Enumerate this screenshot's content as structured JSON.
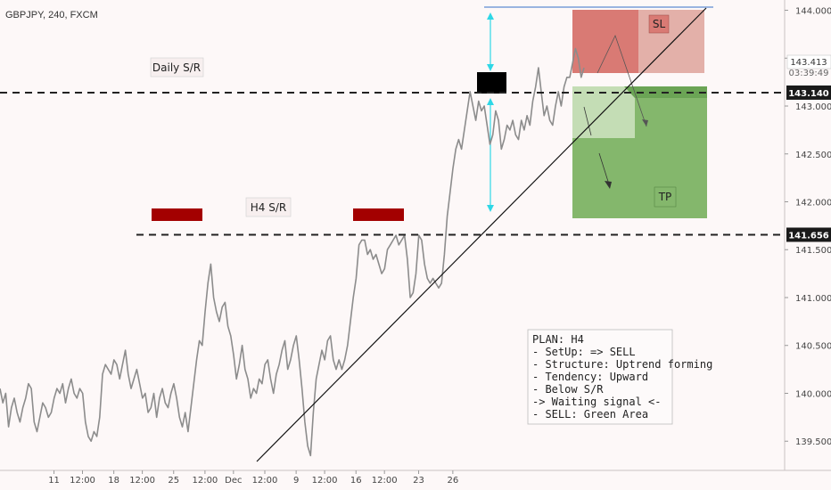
{
  "header": {
    "symbol": "GBPJPY, 240, FXCM"
  },
  "countdown": "03:39:49",
  "chart_data": {
    "type": "line",
    "symbol": "GBPJPY",
    "timeframe": "240",
    "broker": "FXCM",
    "ylim": [
      139.13,
      144.07
    ],
    "y_ticks": [
      "144.000",
      "143.500",
      "143.000",
      "142.500",
      "142.000",
      "141.500",
      "141.000",
      "140.500",
      "140.000",
      "139.500"
    ],
    "y_tick_values": [
      144.0,
      143.5,
      143.0,
      142.5,
      142.0,
      141.5,
      141.0,
      140.5,
      140.0,
      139.5
    ],
    "x_ticks": [
      "11",
      "12:00",
      "18",
      "12:00",
      "25",
      "12:00",
      "Dec",
      "12:00",
      "9",
      "12:00",
      "16",
      "12:00",
      "23",
      "26"
    ],
    "x_tick_bars": [
      8,
      18,
      29,
      39,
      50,
      61,
      71,
      82,
      93,
      103,
      114,
      124,
      136,
      148
    ],
    "series": [
      {
        "values": [
          140.05,
          139.9,
          140.0,
          139.65,
          139.85,
          139.95,
          139.8,
          139.7,
          139.85,
          139.95,
          140.1,
          140.05,
          139.7,
          139.6,
          139.75,
          139.9,
          139.85,
          139.75,
          139.8,
          139.95,
          140.05,
          140.0,
          140.1,
          139.9,
          140.05,
          140.15,
          140.0,
          139.95,
          140.05,
          140.0,
          139.7,
          139.55,
          139.5,
          139.6,
          139.55,
          139.75,
          140.2,
          140.3,
          140.25,
          140.2,
          140.35,
          140.3,
          140.15,
          140.3,
          140.45,
          140.2,
          140.05,
          140.15,
          140.25,
          140.1,
          139.95,
          140.0,
          139.8,
          139.85,
          140.0,
          139.75,
          139.95,
          140.05,
          139.9,
          139.85,
          140.0,
          140.1,
          139.95,
          139.75,
          139.65,
          139.8,
          139.6,
          139.85,
          140.1,
          140.35,
          140.55,
          140.5,
          140.85,
          141.15,
          141.35,
          141.0,
          140.85,
          140.75,
          140.9,
          140.95,
          140.7,
          140.6,
          140.4,
          140.15,
          140.3,
          140.5,
          140.25,
          140.15,
          139.95,
          140.05,
          140.0,
          140.15,
          140.1,
          140.3,
          140.35,
          140.15,
          140.0,
          140.2,
          140.3,
          140.45,
          140.55,
          140.25,
          140.35,
          140.5,
          140.6,
          140.35,
          140.05,
          139.7,
          139.45,
          139.35,
          139.8,
          140.15,
          140.3,
          140.45,
          140.35,
          140.55,
          140.6,
          140.35,
          140.25,
          140.35,
          140.25,
          140.35,
          140.5,
          140.75,
          141.0,
          141.2,
          141.55,
          141.6,
          141.6,
          141.45,
          141.5,
          141.4,
          141.45,
          141.35,
          141.25,
          141.3,
          141.5,
          141.55,
          141.6,
          141.65,
          141.55,
          141.6,
          141.65,
          141.4,
          141.0,
          141.05,
          141.25,
          141.65,
          141.6,
          141.35,
          141.2,
          141.15,
          141.2,
          141.15,
          141.1,
          141.15,
          141.45,
          141.85,
          142.1,
          142.35,
          142.55,
          142.65,
          142.55,
          142.75,
          142.95,
          143.15,
          143.0,
          142.85,
          143.05,
          142.95,
          143.0,
          142.8,
          142.6,
          142.7,
          142.95,
          142.85,
          142.55,
          142.65,
          142.8,
          142.75,
          142.85,
          142.7,
          142.65,
          142.85,
          142.75,
          142.9,
          142.8,
          143.05,
          143.2,
          143.4,
          143.15,
          142.9,
          143.0,
          142.85,
          142.8,
          143.0,
          143.15,
          143.0,
          143.2,
          143.3,
          143.3,
          143.45,
          143.6,
          143.5,
          143.3,
          143.4
        ]
      }
    ],
    "levels": [
      {
        "name": "Daily S/R",
        "value": 143.14,
        "label": "143.140",
        "style": "dashed"
      },
      {
        "name": "H4 S/R",
        "value": 141.656,
        "label": "141.656",
        "style": "dashed"
      }
    ],
    "annotations": {
      "daily_label": "Daily S/R",
      "h4_label": "H4 S/R",
      "sl_label": "SL",
      "tp_label": "TP",
      "current_price": "143.413",
      "zone_colors": {
        "sl": "#d97a74",
        "tp": "#84b76c",
        "marker": "#a30000",
        "level": "#222222"
      }
    },
    "plan_note": {
      "lines": [
        "PLAN: H4",
        "- SetUp: => SELL",
        "- Structure: Uptrend forming",
        "- Tendency: Upward",
        "- Below S/R",
        "-> Waiting signal <-",
        "- SELL: Green Area"
      ]
    }
  }
}
